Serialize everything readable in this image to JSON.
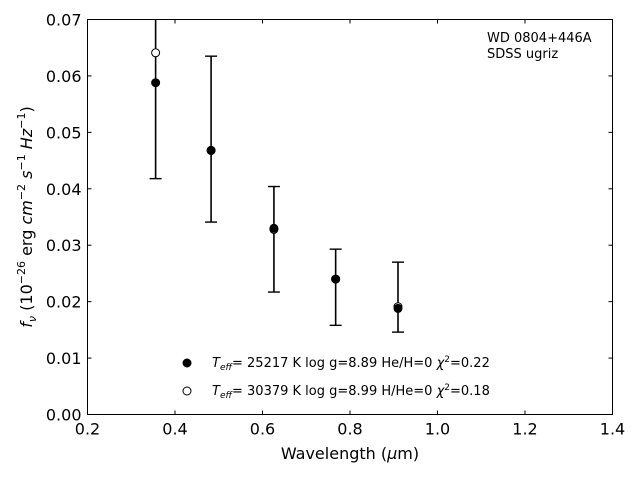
{
  "chart_data": {
    "type": "scatter",
    "title": "",
    "xlabel": "Wavelength (μm)",
    "ylabel": "f_ν (10^-26 erg cm^-2 s^-1 Hz^-1)",
    "xlim": [
      0.2,
      1.4
    ],
    "ylim": [
      0.0,
      0.07
    ],
    "xticks": [
      0.2,
      0.4,
      0.6,
      0.8,
      1.0,
      1.2,
      1.4
    ],
    "xtick_labels": [
      "0.2",
      "0.4",
      "0.6",
      "0.8",
      "1.0",
      "1.2",
      "1.4"
    ],
    "yticks": [
      0.0,
      0.01,
      0.02,
      0.03,
      0.04,
      0.05,
      0.06,
      0.07
    ],
    "ytick_labels": [
      "0.00",
      "0.01",
      "0.02",
      "0.03",
      "0.04",
      "0.05",
      "0.06",
      "0.07"
    ],
    "grid": false,
    "legend_position": "bottom-center",
    "annotation": [
      "WD 0804+446A",
      "SDSS ugriz"
    ],
    "errorbars": {
      "x": [
        0.3557,
        0.4825,
        0.6261,
        0.7672,
        0.9097
      ],
      "y": [
        0.0588,
        0.0468,
        0.033,
        0.024,
        0.0188
      ],
      "yerr_low": [
        0.0418,
        0.0341,
        0.0217,
        0.0158,
        0.0146
      ],
      "yerr_high": [
        0.0705,
        0.0635,
        0.0404,
        0.0293,
        0.027
      ]
    },
    "series": [
      {
        "name": "T_eff= 25217 K  log g=8.89  He/H=0  χ²=0.22",
        "marker": "filled-circle",
        "color": "#000000",
        "x": [
          0.3557,
          0.4825,
          0.6261,
          0.7672,
          0.9097
        ],
        "y": [
          0.0588,
          0.0468,
          0.033,
          0.024,
          0.0188
        ]
      },
      {
        "name": "T_eff= 30379 K  log g=8.99  H/He=0  χ²=0.18",
        "marker": "open-circle",
        "color": "#000000",
        "x": [
          0.3557,
          0.4825,
          0.6261,
          0.7672,
          0.9097
        ],
        "y": [
          0.0641,
          0.0468,
          0.0328,
          0.024,
          0.0191
        ]
      }
    ]
  }
}
